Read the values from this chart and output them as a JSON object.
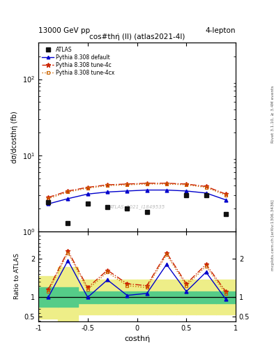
{
  "title": "cos#thη̇ (ll) (atlas2021-4l)",
  "header_left": "13000 GeV pp",
  "header_right": "4-lepton",
  "xlabel": "costhη̇",
  "ylabel_main": "dσ/dcosthη̇ (fb)",
  "ylabel_ratio": "Ratio to ATLAS",
  "watermark": "ATLAS_2021_I1849535",
  "rivet_label": "Rivet 3.1.10, ≥ 3.4M events",
  "arxiv_label": "mcplots.cern.ch [arXiv:1306.3436]",
  "x_centers": [
    -0.9,
    -0.7,
    -0.5,
    -0.3,
    -0.1,
    0.1,
    0.3,
    0.5,
    0.7,
    0.9
  ],
  "x_edges": [
    -1.0,
    -0.8,
    -0.6,
    -0.4,
    -0.2,
    0.0,
    0.2,
    0.4,
    0.6,
    0.8,
    1.0
  ],
  "atlas_data": [
    2.4,
    1.3,
    2.3,
    2.1,
    2.0,
    1.8,
    null,
    3.0,
    3.0,
    1.7
  ],
  "pythia_default_y": [
    2.3,
    2.7,
    3.1,
    3.3,
    3.4,
    3.5,
    3.5,
    3.4,
    3.2,
    2.6
  ],
  "pythia_4c_y": [
    2.8,
    3.4,
    3.8,
    4.1,
    4.2,
    4.3,
    4.3,
    4.2,
    3.9,
    3.1
  ],
  "pythia_4cx_y": [
    2.7,
    3.3,
    3.7,
    4.0,
    4.1,
    4.2,
    4.2,
    4.1,
    3.8,
    3.0
  ],
  "ratio_default": [
    1.0,
    1.95,
    1.0,
    1.45,
    1.05,
    1.1,
    1.85,
    1.15,
    1.65,
    0.95
  ],
  "ratio_4c": [
    1.2,
    2.2,
    1.25,
    1.7,
    1.35,
    1.3,
    2.15,
    1.35,
    1.85,
    1.15
  ],
  "ratio_4cx": [
    1.15,
    2.15,
    1.2,
    1.65,
    1.3,
    1.25,
    2.1,
    1.3,
    1.8,
    1.1
  ],
  "yellow_band_lo": [
    0.45,
    0.22,
    0.55,
    0.55,
    0.55,
    0.55,
    0.55,
    0.55,
    0.55,
    0.55
  ],
  "yellow_band_hi": [
    1.55,
    1.78,
    1.45,
    1.45,
    1.45,
    1.45,
    1.45,
    1.45,
    1.45,
    1.45
  ],
  "green_band_lo": [
    0.75,
    0.75,
    0.85,
    0.85,
    0.85,
    0.85,
    0.85,
    0.85,
    0.85,
    0.85
  ],
  "green_band_hi": [
    1.25,
    1.25,
    1.15,
    1.15,
    1.15,
    1.15,
    1.15,
    1.15,
    1.15,
    1.15
  ],
  "color_default": "#0000cc",
  "color_4c": "#cc2200",
  "color_4cx": "#cc6600",
  "color_atlas": "#111111",
  "color_yellow": "#eeee88",
  "color_green": "#55cc88",
  "ylim_main": [
    1.0,
    300
  ],
  "ylim_ratio": [
    0.38,
    2.7
  ],
  "xlim": [
    -1.0,
    1.0
  ]
}
